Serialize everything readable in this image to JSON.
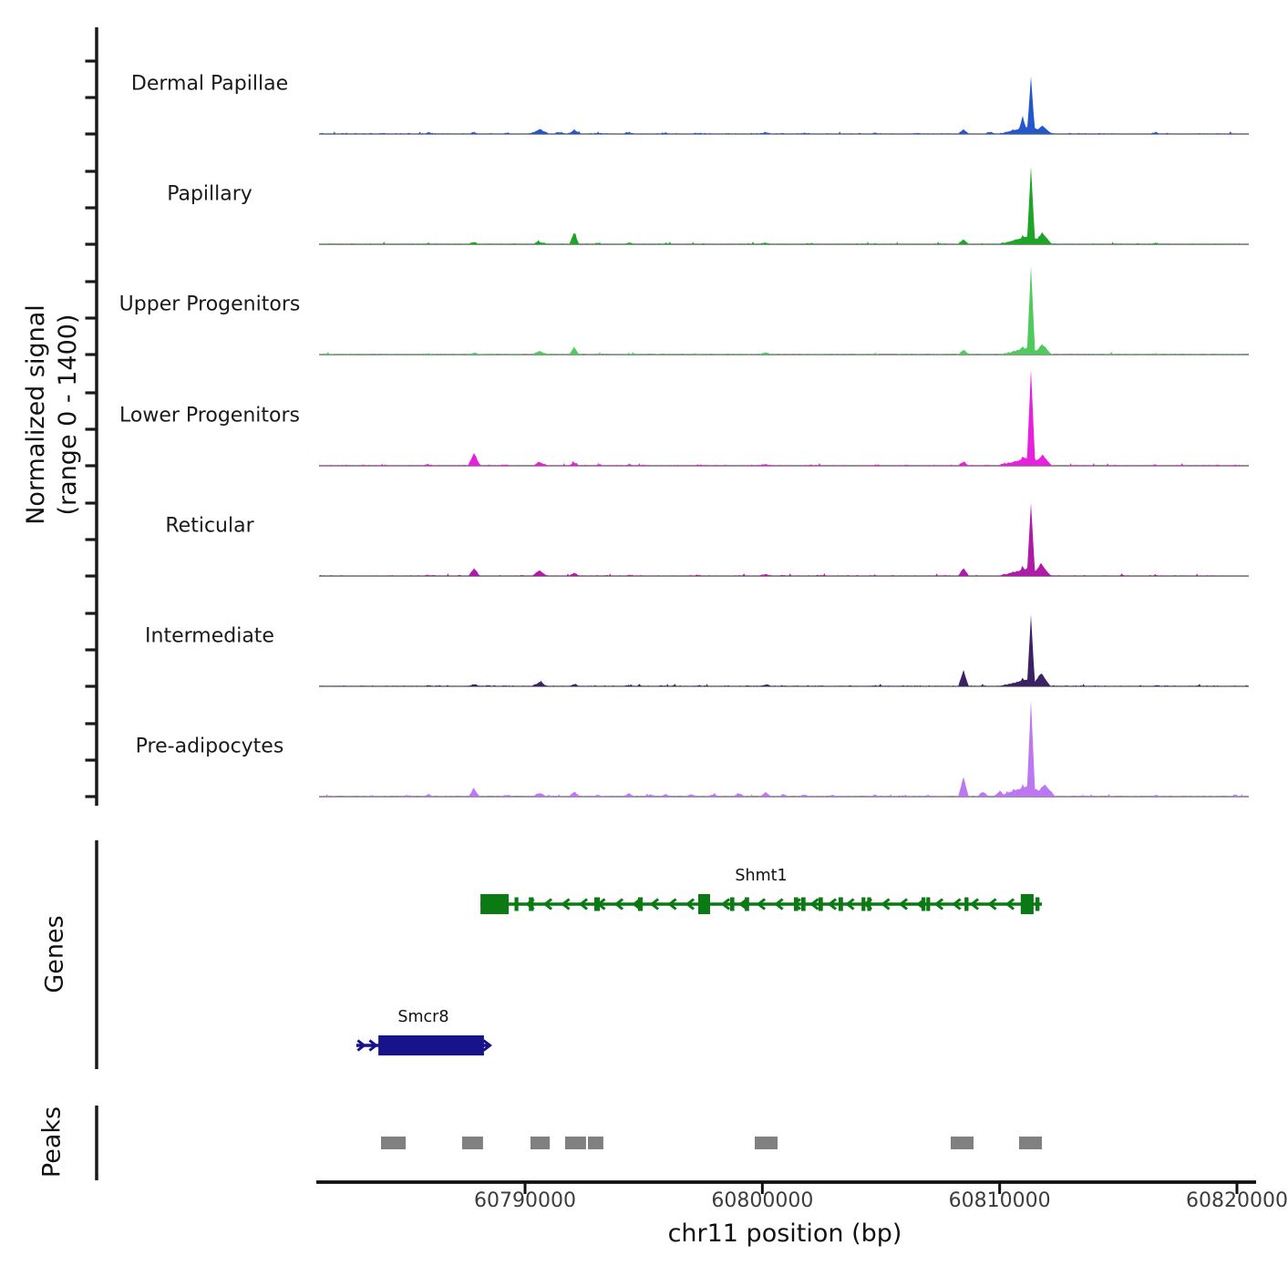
{
  "y_axis": {
    "label_line1": "Normalized signal",
    "label_line2": "(range 0 - 1400)",
    "range_min": 0,
    "range_max": 1400
  },
  "x_axis": {
    "title": "chr11 position (bp)",
    "ticks": [
      {
        "value": 60790000,
        "label": "60790000"
      },
      {
        "value": 60800000,
        "label": "60800000"
      },
      {
        "value": 60810000,
        "label": "60810000"
      },
      {
        "value": 60820000,
        "label": "60820000"
      }
    ]
  },
  "sections": {
    "genes": "Genes",
    "peaks": "Peaks"
  },
  "chart_data": {
    "type": "area",
    "chromosome": "chr11",
    "x_domain_bp": [
      60781450,
      60820500
    ],
    "signal_range": [
      0,
      1400
    ],
    "tracks": [
      {
        "label": "Dermal Papillae",
        "color": "#2457c9",
        "peaks_pos_height_width": [
          [
            60784000,
            10,
            500
          ],
          [
            60785930,
            18,
            450
          ],
          [
            60787850,
            22,
            450
          ],
          [
            60789200,
            12,
            400
          ],
          [
            60790615,
            62,
            800
          ],
          [
            60791500,
            20,
            600
          ],
          [
            60792070,
            58,
            450
          ],
          [
            60793100,
            14,
            400
          ],
          [
            60794380,
            22,
            500
          ],
          [
            60795915,
            16,
            450
          ],
          [
            60797300,
            12,
            400
          ],
          [
            60800140,
            22,
            500
          ],
          [
            60801800,
            10,
            400
          ],
          [
            60804750,
            14,
            350
          ],
          [
            60806500,
            10,
            350
          ],
          [
            60808475,
            62,
            450
          ],
          [
            60809600,
            25,
            500
          ],
          [
            60810970,
            230,
            420
          ],
          [
            60811150,
            90,
            2400
          ],
          [
            60811320,
            754,
            340
          ],
          [
            60811800,
            110,
            800
          ],
          [
            60813000,
            10,
            400
          ],
          [
            60816580,
            28,
            350
          ]
        ]
      },
      {
        "label": "Papillary",
        "color": "#20a428",
        "peaks_pos_height_width": [
          [
            60785930,
            14,
            400
          ],
          [
            60787850,
            26,
            450
          ],
          [
            60790615,
            30,
            600
          ],
          [
            60792070,
            145,
            420
          ],
          [
            60793100,
            15,
            400
          ],
          [
            60794380,
            18,
            450
          ],
          [
            60795915,
            12,
            400
          ],
          [
            60800140,
            20,
            500
          ],
          [
            60802000,
            10,
            400
          ],
          [
            60804750,
            12,
            350
          ],
          [
            60808475,
            62,
            450
          ],
          [
            60810970,
            120,
            420
          ],
          [
            60811150,
            100,
            2300
          ],
          [
            60811320,
            1017,
            350
          ],
          [
            60811800,
            150,
            800
          ],
          [
            60816580,
            16,
            350
          ]
        ]
      },
      {
        "label": "Upper Progenitors",
        "color": "#50c95f",
        "peaks_pos_height_width": [
          [
            60785930,
            12,
            400
          ],
          [
            60787850,
            22,
            450
          ],
          [
            60790615,
            48,
            600
          ],
          [
            60792070,
            100,
            420
          ],
          [
            60794380,
            14,
            400
          ],
          [
            60797300,
            10,
            400
          ],
          [
            60800140,
            24,
            500
          ],
          [
            60802500,
            10,
            400
          ],
          [
            60804750,
            16,
            350
          ],
          [
            60806500,
            10,
            350
          ],
          [
            60808475,
            60,
            450
          ],
          [
            60810970,
            110,
            420
          ],
          [
            60811150,
            85,
            2100
          ],
          [
            60811320,
            1160,
            350
          ],
          [
            60811800,
            130,
            800
          ],
          [
            60816580,
            12,
            350
          ]
        ]
      },
      {
        "label": "Lower Progenitors",
        "color": "#e620dc",
        "peaks_pos_height_width": [
          [
            60784000,
            10,
            400
          ],
          [
            60785930,
            16,
            400
          ],
          [
            60787850,
            165,
            520
          ],
          [
            60789200,
            14,
            400
          ],
          [
            60790615,
            48,
            600
          ],
          [
            60792070,
            42,
            450
          ],
          [
            60793100,
            12,
            400
          ],
          [
            60794380,
            16,
            450
          ],
          [
            60797300,
            12,
            400
          ],
          [
            60800140,
            22,
            500
          ],
          [
            60802000,
            12,
            400
          ],
          [
            60804750,
            12,
            350
          ],
          [
            60808475,
            52,
            450
          ],
          [
            60810200,
            30,
            600
          ],
          [
            60810970,
            120,
            420
          ],
          [
            60811150,
            95,
            2300
          ],
          [
            60811320,
            1256,
            360
          ],
          [
            60811800,
            140,
            800
          ],
          [
            60816580,
            12,
            350
          ]
        ]
      },
      {
        "label": "Reticular",
        "color": "#ae1ba9",
        "peaks_pos_height_width": [
          [
            60785930,
            12,
            400
          ],
          [
            60787850,
            100,
            480
          ],
          [
            60790615,
            72,
            650
          ],
          [
            60792070,
            42,
            450
          ],
          [
            60794380,
            14,
            400
          ],
          [
            60797300,
            10,
            400
          ],
          [
            60800140,
            26,
            500
          ],
          [
            60802500,
            10,
            400
          ],
          [
            60804750,
            12,
            350
          ],
          [
            60808475,
            98,
            460
          ],
          [
            60810200,
            25,
            500
          ],
          [
            60810970,
            130,
            420
          ],
          [
            60811150,
            95,
            2300
          ],
          [
            60811320,
            957,
            350
          ],
          [
            60811750,
            160,
            800
          ],
          [
            60816580,
            14,
            350
          ]
        ]
      },
      {
        "label": "Intermediate",
        "color": "#3a2264",
        "peaks_pos_height_width": [
          [
            60785930,
            10,
            400
          ],
          [
            60787850,
            26,
            450
          ],
          [
            60790615,
            52,
            650
          ],
          [
            60792070,
            26,
            450
          ],
          [
            60794380,
            12,
            400
          ],
          [
            60797300,
            10,
            400
          ],
          [
            60800140,
            22,
            500
          ],
          [
            60802500,
            10,
            350
          ],
          [
            60804750,
            10,
            350
          ],
          [
            60808475,
            210,
            440
          ],
          [
            60810200,
            20,
            500
          ],
          [
            60810970,
            110,
            420
          ],
          [
            60811150,
            85,
            2100
          ],
          [
            60811320,
            933,
            340
          ],
          [
            60811750,
            170,
            800
          ],
          [
            60816580,
            12,
            350
          ]
        ]
      },
      {
        "label": "Pre-adipocytes",
        "color": "#bd77f0",
        "peaks_pos_height_width": [
          [
            60783500,
            14,
            400
          ],
          [
            60785000,
            18,
            450
          ],
          [
            60785930,
            30,
            450
          ],
          [
            60787850,
            100,
            480
          ],
          [
            60789200,
            16,
            400
          ],
          [
            60790615,
            42,
            600
          ],
          [
            60792070,
            62,
            450
          ],
          [
            60793100,
            20,
            400
          ],
          [
            60794380,
            42,
            480
          ],
          [
            60795300,
            25,
            450
          ],
          [
            60795915,
            30,
            450
          ],
          [
            60797000,
            30,
            450
          ],
          [
            60797900,
            25,
            450
          ],
          [
            60799000,
            42,
            480
          ],
          [
            60800140,
            52,
            500
          ],
          [
            60800900,
            30,
            450
          ],
          [
            60801800,
            25,
            450
          ],
          [
            60803000,
            16,
            400
          ],
          [
            60804750,
            22,
            400
          ],
          [
            60806000,
            14,
            400
          ],
          [
            60807000,
            18,
            400
          ],
          [
            60808475,
            255,
            440
          ],
          [
            60809300,
            60,
            500
          ],
          [
            60810000,
            70,
            500
          ],
          [
            60810600,
            95,
            550
          ],
          [
            60810970,
            160,
            450
          ],
          [
            60811150,
            130,
            2500
          ],
          [
            60811320,
            1256,
            360
          ],
          [
            60811900,
            160,
            900
          ],
          [
            60813500,
            12,
            400
          ],
          [
            60816580,
            20,
            350
          ],
          [
            60819900,
            26,
            350
          ]
        ]
      }
    ],
    "genes": [
      {
        "name": "Shmt1",
        "color": "#0b7a14",
        "strand": "-",
        "start": 60788120,
        "end": 60811780,
        "exons": [
          [
            60788120,
            60789310,
            "tall"
          ],
          [
            60789560,
            60789720,
            "small"
          ],
          [
            60790160,
            60790360,
            "small"
          ],
          [
            60792920,
            60793150,
            "small"
          ],
          [
            60794760,
            60794960,
            "small"
          ],
          [
            60797300,
            60797800,
            "tall"
          ],
          [
            60798640,
            60798820,
            "small"
          ],
          [
            60799260,
            60799440,
            "small"
          ],
          [
            60801330,
            60801510,
            "small"
          ],
          [
            60801640,
            60801820,
            "small"
          ],
          [
            60802370,
            60802550,
            "small"
          ],
          [
            60803210,
            60803400,
            "small"
          ],
          [
            60804180,
            60804340,
            "small"
          ],
          [
            60804420,
            60804580,
            "small"
          ],
          [
            60806710,
            60806870,
            "small"
          ],
          [
            60806910,
            60807070,
            "small"
          ],
          [
            60808520,
            60808690,
            "small"
          ],
          [
            60810890,
            60811430,
            "tall"
          ],
          [
            60811510,
            60811680,
            "small"
          ]
        ]
      },
      {
        "name": "Smcr8",
        "color": "#17138b",
        "strand": "+",
        "start": 60782890,
        "end": 60788540,
        "exons": [
          [
            60783820,
            60788270,
            "tall"
          ]
        ]
      }
    ],
    "called_peaks": [
      [
        60783930,
        60784970
      ],
      [
        60787350,
        60788230
      ],
      [
        60790230,
        60791040
      ],
      [
        60791690,
        60792570
      ],
      [
        60792650,
        60793300
      ],
      [
        60799680,
        60800640
      ],
      [
        60807940,
        60808900
      ],
      [
        60810820,
        60811780
      ]
    ],
    "peak_color": "#808080"
  }
}
